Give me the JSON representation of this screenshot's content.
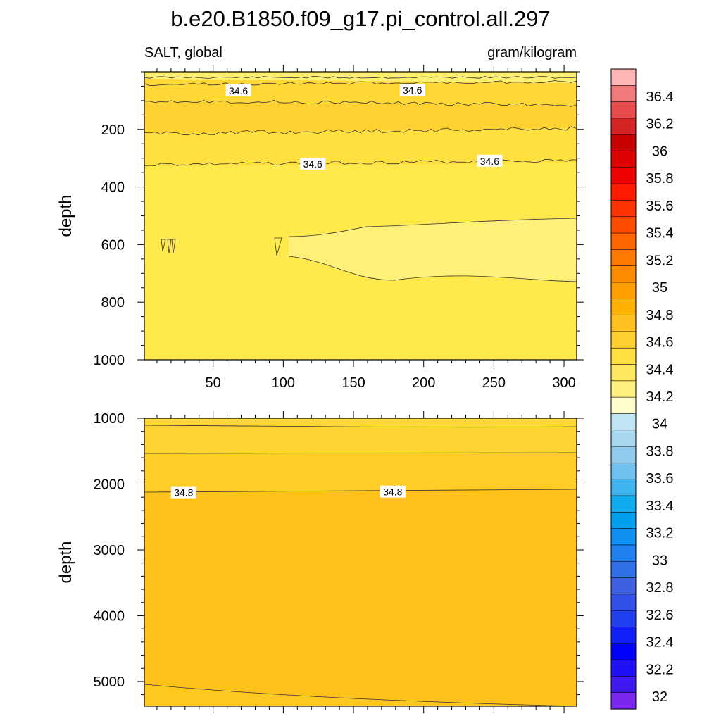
{
  "chart_data": {
    "type": "contour",
    "title": "b.e20.B1850.f09_g17.pi_control.all.297",
    "left_string": "SALT, global",
    "right_string": "gram/kilogram",
    "x_ticks": [
      50,
      100,
      150,
      200,
      250,
      300
    ],
    "x_range": [
      1,
      309
    ],
    "panels": [
      {
        "ylabel": "depth",
        "ylim": [
          0,
          1000
        ],
        "y_ticks": [
          200,
          400,
          600,
          800,
          1000
        ],
        "contour_labels": [
          {
            "text": "34.6",
            "x": 68,
            "y": 66
          },
          {
            "text": "34.6",
            "x": 192,
            "y": 64
          },
          {
            "text": "34.6",
            "x": 121,
            "y": 320
          },
          {
            "text": "34.6",
            "x": 247,
            "y": 310
          }
        ]
      },
      {
        "ylabel": "depth",
        "ylim": [
          1000,
          5375
        ],
        "y_ticks": [
          1000,
          2000,
          3000,
          4000,
          5000
        ],
        "contour_labels": [
          {
            "text": "34.8",
            "x": 29,
            "y": 2130
          },
          {
            "text": "34.8",
            "x": 178,
            "y": 2120
          }
        ]
      }
    ],
    "colorbar": {
      "labels": [
        "36.4",
        "36.2",
        "36",
        "35.8",
        "35.6",
        "35.4",
        "35.2",
        "35",
        "34.8",
        "34.6",
        "34.4",
        "34.2",
        "34",
        "33.8",
        "33.6",
        "33.4",
        "33.2",
        "33",
        "32.8",
        "32.6",
        "32.4",
        "32.2",
        "32"
      ],
      "colors": [
        "#ffb6b6",
        "#f07a7a",
        "#e84c4c",
        "#d42424",
        "#c80000",
        "#dc0000",
        "#f00000",
        "#ff1a00",
        "#ff3300",
        "#ff4d00",
        "#ff6600",
        "#ff7a00",
        "#ff8c00",
        "#ffa000",
        "#ffb000",
        "#ffc020",
        "#ffd030",
        "#ffe040",
        "#ffe860",
        "#fff080",
        "#fffccc",
        "#c0e6f5",
        "#a8d8f0",
        "#90cbee",
        "#70c0f0",
        "#40b4ee",
        "#10aaee",
        "#00a0ee",
        "#1090f0",
        "#2080f0",
        "#3070e8",
        "#3c60e0",
        "#3050e8",
        "#2040f0",
        "#1020f8",
        "#0000ff",
        "#2010f8",
        "#4018f0",
        "#7a28f0"
      ]
    }
  }
}
